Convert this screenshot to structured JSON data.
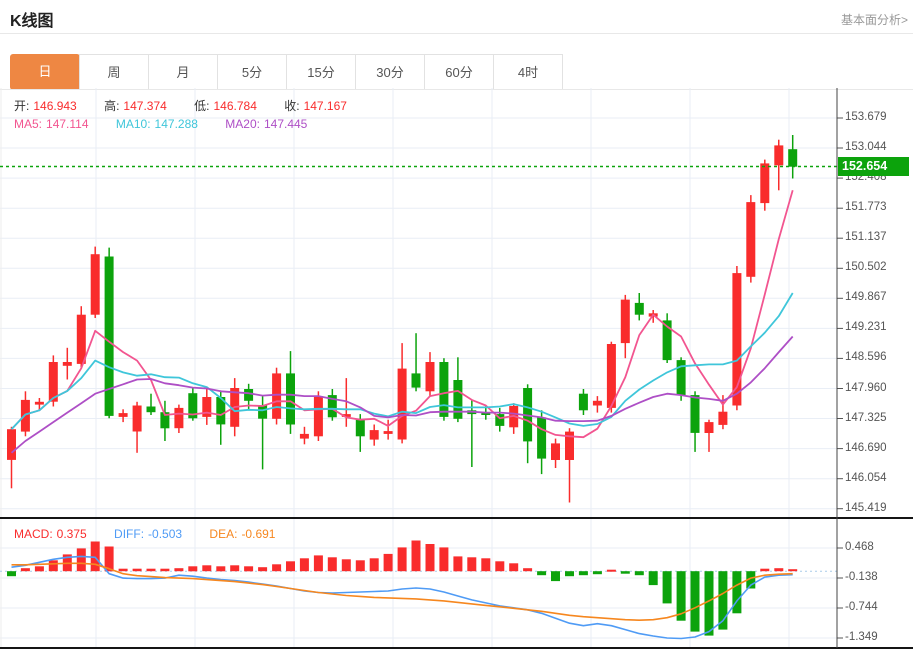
{
  "header": {
    "title": "K线图",
    "link": "基本面分析>"
  },
  "tabs": {
    "active": 0,
    "items": [
      "日",
      "周",
      "月",
      "5分",
      "15分",
      "30分",
      "60分",
      "4时"
    ],
    "names": [
      "day",
      "week",
      "month",
      "5min",
      "15min",
      "30min",
      "60min",
      "4hour"
    ]
  },
  "ohlc": {
    "open_label": "开:",
    "open": "146.943",
    "high_label": "高:",
    "high": "147.374",
    "low_label": "低:",
    "low": "146.784",
    "close_label": "收:",
    "close": "147.167"
  },
  "ma": {
    "ma5_label": "MA5:",
    "ma5": "147.114",
    "ma10_label": "MA10:",
    "ma10": "147.288",
    "ma20_label": "MA20:",
    "ma20": "147.445"
  },
  "macd_info": {
    "macd_label": "MACD:",
    "macd": "0.375",
    "diff_label": "DIFF:",
    "diff": "-0.503",
    "dea_label": "DEA:",
    "dea": "-0.691"
  },
  "price_axis": {
    "ticks": [
      "153.679",
      "153.044",
      "152.408",
      "151.773",
      "151.137",
      "150.502",
      "149.867",
      "149.231",
      "148.596",
      "147.960",
      "147.325",
      "146.690",
      "146.054",
      "145.419"
    ]
  },
  "macd_axis": {
    "ticks": [
      "0.468",
      "-0.138",
      "-0.744",
      "-1.349"
    ]
  },
  "current_price": {
    "value": "152.654"
  },
  "colors": {
    "up": "#f92c2c",
    "down": "#0ca30c",
    "badge": "#0ca30c",
    "ma5": "#f25590",
    "ma10": "#3fc6da",
    "ma20": "#ae4fc6",
    "diff": "#4f9bf5",
    "dea": "#f6871f",
    "tab_active": "#ee8743",
    "grid": "#e9eef6",
    "zero_line": "#a9cbe9",
    "divider": "#151515",
    "axis_line": "#444",
    "label": "#333",
    "axis_text": "#555"
  },
  "chart_data": {
    "type": "candlestick_with_macd",
    "title": "K线图",
    "legend": [
      "MA5",
      "MA10",
      "MA20",
      "MACD",
      "DIFF",
      "DEA"
    ],
    "price_axis_values": [
      153.679,
      153.044,
      152.408,
      151.773,
      151.137,
      150.502,
      149.867,
      149.231,
      148.596,
      147.96,
      147.325,
      146.69,
      146.054,
      145.419
    ],
    "macd_axis_values": [
      0.468,
      -0.138,
      -0.744,
      -1.349
    ],
    "current_price": 152.654,
    "grid": true,
    "candles_ohlc": [
      [
        146.45,
        147.15,
        145.85,
        147.1
      ],
      [
        147.05,
        147.9,
        146.95,
        147.72
      ],
      [
        147.62,
        147.76,
        147.5,
        147.68
      ],
      [
        147.68,
        148.66,
        147.58,
        148.52
      ],
      [
        148.44,
        148.82,
        148.15,
        148.52
      ],
      [
        148.48,
        149.7,
        148.4,
        149.52
      ],
      [
        149.52,
        150.96,
        149.45,
        150.8
      ],
      [
        150.75,
        150.94,
        147.33,
        147.38
      ],
      [
        147.36,
        147.52,
        147.25,
        147.44
      ],
      [
        147.05,
        147.68,
        146.6,
        147.6
      ],
      [
        147.58,
        147.85,
        147.4,
        147.46
      ],
      [
        147.46,
        147.7,
        146.85,
        147.12
      ],
      [
        147.12,
        147.62,
        147.02,
        147.55
      ],
      [
        147.86,
        147.96,
        147.28,
        147.33
      ],
      [
        147.36,
        147.99,
        147.19,
        147.78
      ],
      [
        147.78,
        147.92,
        146.77,
        147.2
      ],
      [
        147.15,
        148.18,
        146.95,
        147.97
      ],
      [
        147.95,
        148.06,
        147.5,
        147.7
      ],
      [
        147.6,
        147.8,
        146.25,
        147.32
      ],
      [
        147.32,
        148.4,
        147.2,
        148.28
      ],
      [
        148.28,
        148.75,
        147.0,
        147.2
      ],
      [
        146.9,
        147.15,
        146.78,
        147.0
      ],
      [
        146.95,
        147.9,
        146.85,
        147.8
      ],
      [
        147.82,
        147.95,
        147.28,
        147.35
      ],
      [
        147.36,
        148.18,
        147.15,
        147.42
      ],
      [
        147.3,
        147.42,
        146.62,
        146.95
      ],
      [
        146.88,
        147.2,
        146.75,
        147.08
      ],
      [
        147.0,
        147.3,
        146.88,
        147.06
      ],
      [
        146.88,
        148.92,
        146.8,
        148.38
      ],
      [
        148.28,
        149.13,
        147.9,
        147.98
      ],
      [
        147.9,
        148.73,
        147.8,
        148.52
      ],
      [
        148.52,
        148.6,
        147.28,
        147.36
      ],
      [
        148.14,
        148.62,
        147.25,
        147.32
      ],
      [
        147.5,
        147.72,
        146.3,
        147.42
      ],
      [
        147.46,
        147.6,
        147.3,
        147.4
      ],
      [
        147.42,
        147.55,
        147.05,
        147.17
      ],
      [
        147.14,
        147.65,
        147.0,
        147.59
      ],
      [
        147.97,
        148.05,
        146.38,
        146.84
      ],
      [
        147.35,
        147.5,
        146.15,
        146.48
      ],
      [
        146.45,
        146.9,
        146.28,
        146.8
      ],
      [
        146.45,
        147.12,
        145.55,
        147.05
      ],
      [
        147.85,
        147.95,
        147.4,
        147.5
      ],
      [
        147.6,
        147.8,
        147.45,
        147.7
      ],
      [
        147.55,
        148.95,
        147.45,
        148.9
      ],
      [
        148.92,
        149.94,
        148.6,
        149.84
      ],
      [
        149.77,
        149.98,
        149.4,
        149.52
      ],
      [
        149.48,
        149.62,
        149.35,
        149.55
      ],
      [
        149.4,
        149.55,
        148.5,
        148.56
      ],
      [
        148.56,
        148.62,
        147.7,
        147.82
      ],
      [
        147.82,
        147.9,
        146.62,
        147.02
      ],
      [
        147.02,
        147.3,
        146.62,
        147.25
      ],
      [
        147.19,
        147.82,
        147.1,
        147.47
      ],
      [
        147.6,
        150.55,
        147.5,
        150.4
      ],
      [
        150.32,
        152.05,
        150.2,
        151.9
      ],
      [
        151.88,
        152.8,
        151.72,
        152.72
      ],
      [
        152.68,
        153.22,
        152.15,
        153.1
      ],
      [
        153.02,
        153.32,
        152.4,
        152.65
      ]
    ],
    "ma5": [
      147.1,
      147.41,
      147.5,
      147.76,
      147.91,
      148.39,
      149.18,
      148.95,
      148.73,
      148.55,
      148.14,
      147.4,
      147.43,
      147.41,
      147.45,
      147.4,
      147.57,
      147.6,
      147.59,
      147.69,
      147.69,
      147.5,
      147.52,
      147.53,
      147.35,
      147.3,
      147.32,
      147.17,
      147.38,
      147.49,
      147.8,
      147.86,
      147.91,
      147.72,
      147.6,
      147.33,
      147.38,
      147.28,
      147.1,
      146.98,
      146.95,
      146.93,
      147.11,
      147.59,
      148.2,
      149.09,
      149.52,
      149.27,
      149.06,
      148.49,
      148.04,
      147.62,
      147.99,
      148.81,
      149.95,
      151.12,
      152.15
    ],
    "ma10": [
      147.1,
      147.41,
      147.5,
      147.76,
      147.91,
      148.18,
      148.55,
      148.41,
      148.3,
      148.23,
      148.26,
      148.2,
      148.19,
      148.07,
      147.99,
      147.76,
      147.48,
      147.51,
      147.5,
      147.57,
      147.54,
      147.52,
      147.53,
      147.53,
      147.52,
      147.52,
      147.43,
      147.37,
      147.47,
      147.44,
      147.57,
      147.61,
      147.56,
      147.56,
      147.56,
      147.58,
      147.63,
      147.56,
      147.47,
      147.35,
      147.22,
      147.17,
      147.21,
      147.36,
      147.7,
      147.94,
      148.13,
      148.3,
      148.43,
      148.45,
      148.47,
      148.47,
      148.55,
      148.85,
      149.14,
      149.49,
      149.98
    ],
    "ma20": [
      146.6,
      146.85,
      147.05,
      147.25,
      147.45,
      147.65,
      147.85,
      147.95,
      148.05,
      148.15,
      148.16,
      148.07,
      148.03,
      147.98,
      147.96,
      147.9,
      147.88,
      147.86,
      147.81,
      147.83,
      147.83,
      147.8,
      147.8,
      147.74,
      147.69,
      147.56,
      147.38,
      147.35,
      147.4,
      147.39,
      147.46,
      147.47,
      147.47,
      147.47,
      147.45,
      147.45,
      147.43,
      147.39,
      147.35,
      147.28,
      147.27,
      147.27,
      147.28,
      147.38,
      147.53,
      147.66,
      147.78,
      147.85,
      147.82,
      147.77,
      147.74,
      147.7,
      147.85,
      148.09,
      148.39,
      148.73,
      149.06
    ],
    "macd_hist": [
      -0.1,
      0.06,
      0.1,
      0.22,
      0.34,
      0.46,
      0.6,
      0.5,
      0.05,
      0.05,
      0.05,
      0.05,
      0.06,
      0.1,
      0.12,
      0.1,
      0.12,
      0.1,
      0.08,
      0.14,
      0.2,
      0.26,
      0.32,
      0.28,
      0.24,
      0.22,
      0.26,
      0.35,
      0.48,
      0.62,
      0.55,
      0.48,
      0.3,
      0.28,
      0.26,
      0.2,
      0.16,
      0.06,
      -0.08,
      -0.2,
      -0.1,
      -0.08,
      -0.06,
      0.03,
      -0.05,
      -0.08,
      -0.28,
      -0.65,
      -1.0,
      -1.22,
      -1.3,
      -1.18,
      -0.85,
      -0.35,
      0.05,
      0.06,
      0.04
    ],
    "diff_line": [
      0.08,
      0.12,
      0.18,
      0.24,
      0.28,
      0.3,
      0.28,
      -0.05,
      -0.14,
      -0.15,
      -0.15,
      -0.14,
      -0.08,
      -0.1,
      -0.14,
      -0.17,
      -0.19,
      -0.22,
      -0.26,
      -0.3,
      -0.35,
      -0.4,
      -0.43,
      -0.44,
      -0.43,
      -0.42,
      -0.41,
      -0.4,
      -0.36,
      -0.34,
      -0.36,
      -0.42,
      -0.5,
      -0.58,
      -0.64,
      -0.7,
      -0.74,
      -0.78,
      -0.85,
      -0.95,
      -1.05,
      -1.1,
      -1.06,
      -1.1,
      -1.18,
      -1.26,
      -1.31,
      -1.35,
      -1.36,
      -1.33,
      -1.22,
      -1.0,
      -0.6,
      -0.28,
      -0.12,
      -0.08,
      -0.07
    ],
    "dea_line": [
      0.13,
      0.13,
      0.14,
      0.15,
      0.16,
      0.16,
      0.14,
      0.05,
      -0.05,
      -0.09,
      -0.11,
      -0.13,
      -0.14,
      -0.15,
      -0.17,
      -0.19,
      -0.21,
      -0.24,
      -0.27,
      -0.31,
      -0.35,
      -0.39,
      -0.43,
      -0.46,
      -0.49,
      -0.51,
      -0.53,
      -0.54,
      -0.55,
      -0.56,
      -0.58,
      -0.6,
      -0.63,
      -0.66,
      -0.69,
      -0.72,
      -0.75,
      -0.78,
      -0.81,
      -0.85,
      -0.89,
      -0.92,
      -0.94,
      -0.96,
      -0.98,
      -0.99,
      -0.98,
      -0.94,
      -0.86,
      -0.74,
      -0.6,
      -0.45,
      -0.28,
      -0.14,
      -0.08,
      -0.06,
      -0.05
    ]
  }
}
